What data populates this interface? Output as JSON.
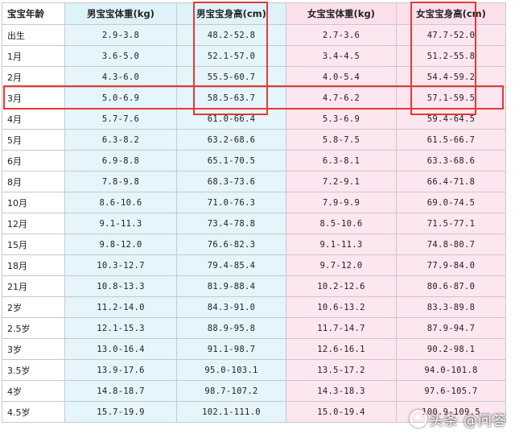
{
  "headers": {
    "age": "宝宝年龄",
    "boy_weight": "男宝宝体重(kg)",
    "boy_height": "男宝宝身高(cm)",
    "girl_weight": "女宝宝体重(kg)",
    "girl_height": "女宝宝身高(cm)"
  },
  "rows": [
    {
      "age": "出生",
      "bw": "2.9-3.8",
      "bh": "48.2-52.8",
      "gw": "2.7-3.6",
      "gh": "47.7-52.0"
    },
    {
      "age": "1月",
      "bw": "3.6-5.0",
      "bh": "52.1-57.0",
      "gw": "3.4-4.5",
      "gh": "51.2-55.8"
    },
    {
      "age": "2月",
      "bw": "4.3-6.0",
      "bh": "55.5-60.7",
      "gw": "4.0-5.4",
      "gh": "54.4-59.2"
    },
    {
      "age": "3月",
      "bw": "5.0-6.9",
      "bh": "58.5-63.7",
      "gw": "4.7-6.2",
      "gh": "57.1-59.5"
    },
    {
      "age": "4月",
      "bw": "5.7-7.6",
      "bh": "61.0-66.4",
      "gw": "5.3-6.9",
      "gh": "59.4-64.5"
    },
    {
      "age": "5月",
      "bw": "6.3-8.2",
      "bh": "63.2-68.6",
      "gw": "5.8-7.5",
      "gh": "61.5-66.7"
    },
    {
      "age": "6月",
      "bw": "6.9-8.8",
      "bh": "65.1-70.5",
      "gw": "6.3-8.1",
      "gh": "63.3-68.6"
    },
    {
      "age": "8月",
      "bw": "7.8-9.8",
      "bh": "68.3-73.6",
      "gw": "7.2-9.1",
      "gh": "66.4-71.8"
    },
    {
      "age": "10月",
      "bw": "8.6-10.6",
      "bh": "71.0-76.3",
      "gw": "7.9-9.9",
      "gh": "69.0-74.5"
    },
    {
      "age": "12月",
      "bw": "9.1-11.3",
      "bh": "73.4-78.8",
      "gw": "8.5-10.6",
      "gh": "71.5-77.1"
    },
    {
      "age": "15月",
      "bw": "9.8-12.0",
      "bh": "76.6-82.3",
      "gw": "9.1-11.3",
      "gh": "74.8-80.7"
    },
    {
      "age": "18月",
      "bw": "10.3-12.7",
      "bh": "79.4-85.4",
      "gw": "9.7-12.0",
      "gh": "77.9-84.0"
    },
    {
      "age": "21月",
      "bw": "10.8-13.3",
      "bh": "81.9-88.4",
      "gw": "10.2-12.6",
      "gh": "80.6-87.0"
    },
    {
      "age": "2岁",
      "bw": "11.2-14.0",
      "bh": "84.3-91.0",
      "gw": "10.6-13.2",
      "gh": "83.3-89.8"
    },
    {
      "age": "2.5岁",
      "bw": "12.1-15.3",
      "bh": "88.9-95.8",
      "gw": "11.7-14.7",
      "gh": "87.9-94.7"
    },
    {
      "age": "3岁",
      "bw": "13.0-16.4",
      "bh": "91.1-98.7",
      "gw": "12.6-16.1",
      "gh": "90.2-98.1"
    },
    {
      "age": "3.5岁",
      "bw": "13.9-17.6",
      "bh": "95.0-103.1",
      "gw": "13.5-17.2",
      "gh": "94.0-101.8"
    },
    {
      "age": "4岁",
      "bw": "14.8-18.7",
      "bh": "98.7-107.2",
      "gw": "14.3-18.3",
      "gh": "97.6-105.7"
    },
    {
      "age": "4.5岁",
      "bw": "15.7-19.9",
      "bh": "102.1-111.0",
      "gw": "15.0-19.4",
      "gh": "100.9-109.5"
    }
  ],
  "highlight_color": "#e53935",
  "watermark": "头条 @问答"
}
